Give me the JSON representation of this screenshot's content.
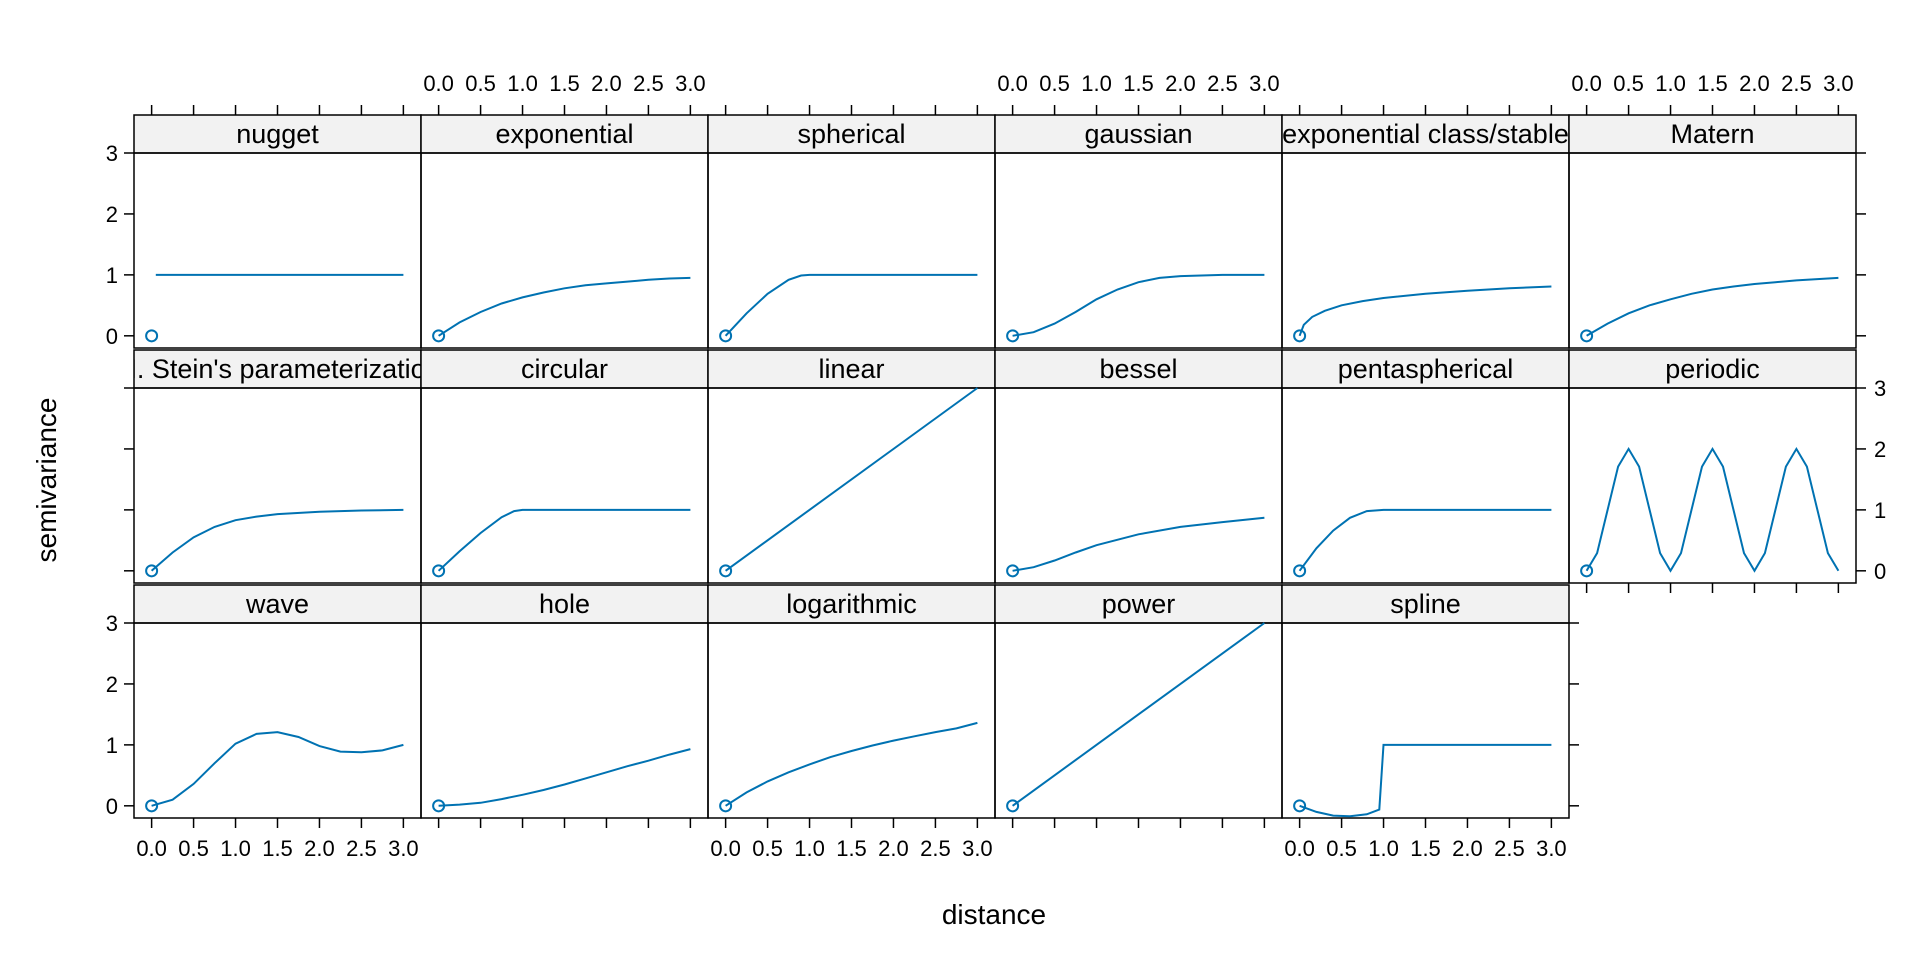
{
  "chart_data": {
    "type": "line",
    "layout": "trellis",
    "xlabel": "distance",
    "ylabel": "semivariance",
    "xlim": [
      0,
      3
    ],
    "ylim": [
      -0.2,
      3
    ],
    "x_ticks": [
      "0.0",
      "0.5",
      "1.0",
      "1.5",
      "2.0",
      "2.5",
      "3.0"
    ],
    "y_ticks": [
      "0",
      "1",
      "2",
      "3"
    ],
    "grid": false,
    "legend": "none",
    "line_color": "#0072B2",
    "strip_color": "#F2F2F2",
    "panels": [
      {
        "name": "nugget",
        "points": [
          [
            0,
            0
          ]
        ],
        "x": [
          0.05,
          3
        ],
        "y": [
          1,
          1
        ]
      },
      {
        "name": "exponential",
        "points": [
          [
            0,
            0
          ]
        ],
        "x": [
          0,
          0.25,
          0.5,
          0.75,
          1,
          1.25,
          1.5,
          1.75,
          2,
          2.25,
          2.5,
          2.75,
          3
        ],
        "y": [
          0,
          0.22,
          0.39,
          0.53,
          0.63,
          0.71,
          0.78,
          0.83,
          0.86,
          0.89,
          0.92,
          0.94,
          0.95
        ]
      },
      {
        "name": "spherical",
        "points": [
          [
            0,
            0
          ]
        ],
        "x": [
          0,
          0.25,
          0.5,
          0.75,
          0.9,
          1,
          1.5,
          2,
          2.5,
          3
        ],
        "y": [
          0,
          0.37,
          0.69,
          0.92,
          0.99,
          1,
          1,
          1,
          1,
          1
        ]
      },
      {
        "name": "gaussian",
        "points": [
          [
            0,
            0
          ]
        ],
        "x": [
          0,
          0.25,
          0.5,
          0.75,
          1,
          1.25,
          1.5,
          1.75,
          2,
          2.25,
          2.5,
          3
        ],
        "y": [
          0,
          0.06,
          0.2,
          0.39,
          0.6,
          0.76,
          0.88,
          0.95,
          0.98,
          0.99,
          1,
          1
        ]
      },
      {
        "name": "exponential class/stable",
        "points": [
          [
            0,
            0
          ]
        ],
        "x": [
          0,
          0.05,
          0.15,
          0.3,
          0.5,
          0.75,
          1,
          1.5,
          2,
          2.5,
          3
        ],
        "y": [
          0,
          0.18,
          0.31,
          0.41,
          0.5,
          0.57,
          0.62,
          0.69,
          0.74,
          0.78,
          0.81
        ]
      },
      {
        "name": "Matern",
        "points": [
          [
            0,
            0
          ]
        ],
        "x": [
          0,
          0.25,
          0.5,
          0.75,
          1,
          1.25,
          1.5,
          1.75,
          2,
          2.25,
          2.5,
          2.75,
          3
        ],
        "y": [
          0,
          0.2,
          0.37,
          0.5,
          0.6,
          0.69,
          0.76,
          0.81,
          0.85,
          0.88,
          0.91,
          0.93,
          0.95
        ]
      },
      {
        "name": "M. Stein's parameterization",
        "points": [
          [
            0,
            0
          ]
        ],
        "x": [
          0,
          0.25,
          0.5,
          0.75,
          1,
          1.25,
          1.5,
          2,
          2.5,
          3
        ],
        "y": [
          0,
          0.3,
          0.55,
          0.72,
          0.83,
          0.89,
          0.93,
          0.97,
          0.99,
          1
        ]
      },
      {
        "name": "circular",
        "points": [
          [
            0,
            0
          ]
        ],
        "x": [
          0,
          0.25,
          0.5,
          0.75,
          0.9,
          1,
          1.5,
          2,
          2.5,
          3
        ],
        "y": [
          0,
          0.32,
          0.62,
          0.88,
          0.98,
          1,
          1,
          1,
          1,
          1
        ]
      },
      {
        "name": "linear",
        "points": [
          [
            0,
            0
          ]
        ],
        "x": [
          0,
          3
        ],
        "y": [
          0,
          3
        ]
      },
      {
        "name": "bessel",
        "points": [
          [
            0,
            0
          ]
        ],
        "x": [
          0,
          0.25,
          0.5,
          0.75,
          1,
          1.5,
          2,
          2.5,
          3
        ],
        "y": [
          0,
          0.06,
          0.17,
          0.3,
          0.42,
          0.6,
          0.72,
          0.8,
          0.87
        ]
      },
      {
        "name": "pentaspherical",
        "points": [
          [
            0,
            0
          ]
        ],
        "x": [
          0,
          0.2,
          0.4,
          0.6,
          0.8,
          1,
          1.5,
          2,
          2.5,
          3
        ],
        "y": [
          0,
          0.37,
          0.66,
          0.87,
          0.98,
          1,
          1,
          1,
          1,
          1
        ]
      },
      {
        "name": "periodic",
        "points": [
          [
            0,
            0
          ]
        ],
        "x": [
          0,
          0.125,
          0.25,
          0.375,
          0.5,
          0.625,
          0.75,
          0.875,
          1,
          1.125,
          1.25,
          1.375,
          1.5,
          1.625,
          1.75,
          1.875,
          2,
          2.125,
          2.25,
          2.375,
          2.5,
          2.625,
          2.75,
          2.875,
          3
        ],
        "y": [
          0,
          0.29,
          1,
          1.71,
          2,
          1.71,
          1,
          0.29,
          0,
          0.29,
          1,
          1.71,
          2,
          1.71,
          1,
          0.29,
          0,
          0.29,
          1,
          1.71,
          2,
          1.71,
          1,
          0.29,
          0
        ]
      },
      {
        "name": "wave",
        "points": [
          [
            0,
            0
          ]
        ],
        "x": [
          0,
          0.25,
          0.5,
          0.75,
          1,
          1.25,
          1.5,
          1.75,
          2,
          2.25,
          2.5,
          2.75,
          3
        ],
        "y": [
          0,
          0.1,
          0.36,
          0.7,
          1.02,
          1.18,
          1.21,
          1.13,
          0.98,
          0.89,
          0.88,
          0.91,
          1
        ]
      },
      {
        "name": "hole",
        "points": [
          [
            0,
            0
          ]
        ],
        "x": [
          0,
          0.25,
          0.5,
          0.75,
          1,
          1.25,
          1.5,
          1.75,
          2,
          2.25,
          2.5,
          2.75,
          3
        ],
        "y": [
          0,
          0.02,
          0.05,
          0.11,
          0.18,
          0.26,
          0.35,
          0.45,
          0.55,
          0.65,
          0.74,
          0.84,
          0.93
        ]
      },
      {
        "name": "logarithmic",
        "points": [
          [
            0,
            0
          ]
        ],
        "x": [
          0,
          0.25,
          0.5,
          0.75,
          1,
          1.25,
          1.5,
          1.75,
          2,
          2.25,
          2.5,
          2.75,
          3
        ],
        "y": [
          0,
          0.22,
          0.4,
          0.55,
          0.68,
          0.8,
          0.9,
          0.99,
          1.07,
          1.14,
          1.21,
          1.27,
          1.36
        ]
      },
      {
        "name": "power",
        "points": [
          [
            0,
            0
          ]
        ],
        "x": [
          0,
          3
        ],
        "y": [
          0,
          3
        ]
      },
      {
        "name": "spline",
        "points": [
          [
            0,
            0
          ]
        ],
        "x": [
          0,
          0.2,
          0.4,
          0.6,
          0.8,
          0.95,
          1,
          1.5,
          2,
          2.5,
          3
        ],
        "y": [
          0,
          -0.1,
          -0.16,
          -0.17,
          -0.14,
          -0.06,
          1,
          1,
          1,
          1,
          1
        ]
      }
    ]
  }
}
